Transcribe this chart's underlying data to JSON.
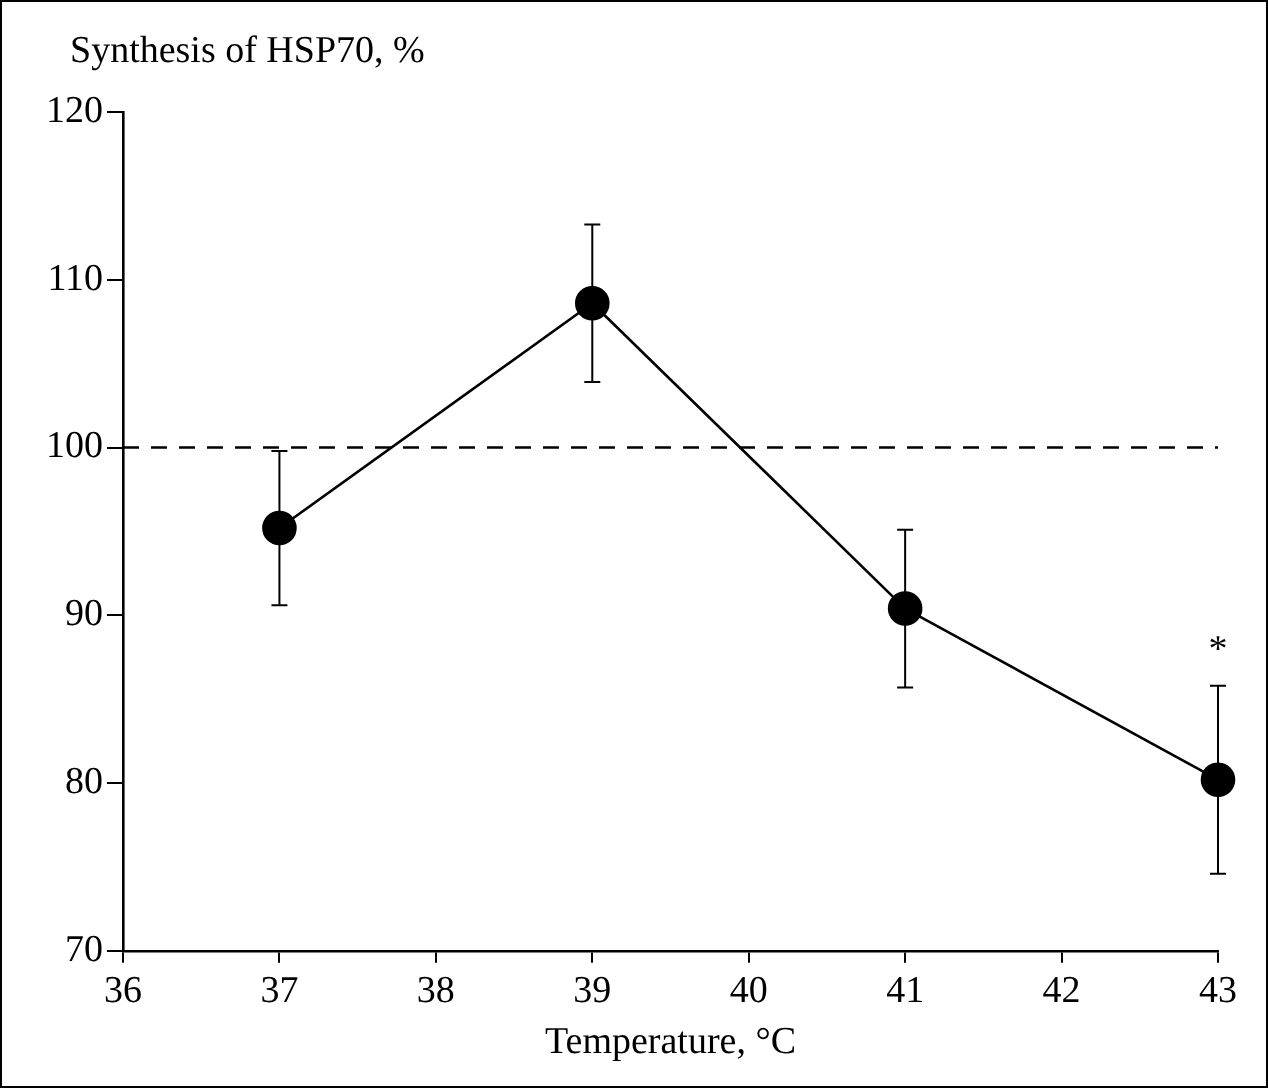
{
  "chart_data": {
    "type": "line",
    "ylabel": "Synthesis of HSP70, %",
    "xlabel": "Temperature, °C",
    "x": [
      37,
      39,
      41,
      43
    ],
    "values": [
      95.2,
      108.6,
      90.4,
      80.2
    ],
    "errors": [
      4.6,
      4.7,
      4.7,
      5.6
    ],
    "color": "#000000",
    "xlim": [
      36,
      43
    ],
    "xticks": [
      36,
      37,
      38,
      39,
      40,
      41,
      42,
      43
    ],
    "ylim": [
      70,
      120
    ],
    "yticks": [
      70,
      80,
      90,
      100,
      110,
      120
    ],
    "marker": "circle",
    "line_style": "solid",
    "grid": false,
    "legend": false,
    "ref_lines": [
      {
        "axis": "y",
        "value": 100,
        "line_style": "dashed",
        "color": "#000000"
      }
    ],
    "annotations": [
      "*"
    ]
  }
}
